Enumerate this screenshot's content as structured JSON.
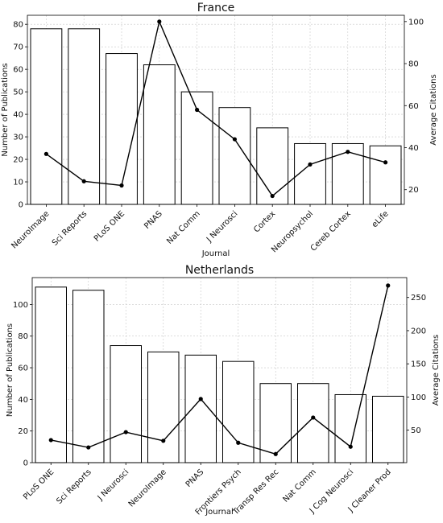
{
  "chart_data": [
    {
      "type": "bar",
      "title": "France",
      "xlabel": "Journal",
      "ylabel": "Number of Publications",
      "y2label": "Average Citations",
      "categories": [
        "NeuroImage",
        "Sci Reports",
        "PLoS ONE",
        "PNAS",
        "Nat Comm",
        "J Neurosci",
        "Cortex",
        "Neuropsychol",
        "Cereb Cortex",
        "eLife"
      ],
      "series": [
        {
          "name": "Number of Publications",
          "type": "bar",
          "axis": "left",
          "values": [
            78,
            78,
            67,
            62,
            50,
            43,
            34,
            27,
            27,
            26
          ]
        },
        {
          "name": "Average Citations",
          "type": "line",
          "axis": "right",
          "values": [
            37,
            24,
            22,
            100,
            58,
            44,
            17,
            32,
            38,
            33
          ]
        }
      ],
      "ylim": [
        0,
        84
      ],
      "yticks": [
        0,
        10,
        20,
        30,
        40,
        50,
        60,
        70,
        80
      ],
      "y2lim": [
        13,
        103
      ],
      "y2ticks": [
        20,
        40,
        60,
        80,
        100
      ],
      "grid": true
    },
    {
      "type": "bar",
      "title": "Netherlands",
      "xlabel": "Journal",
      "ylabel": "Number of Publications",
      "y2label": "Average Citations",
      "categories": [
        "PLoS ONE",
        "Sci Reports",
        "J Neurosci",
        "NeuroImage",
        "PNAS",
        "Frontiers Psych",
        "Transp Res Rec",
        "Nat Comm",
        "J Cog Neurosci",
        "J Cleaner Prod"
      ],
      "series": [
        {
          "name": "Number of Publications",
          "type": "bar",
          "axis": "left",
          "values": [
            111,
            109,
            74,
            70,
            68,
            64,
            50,
            50,
            43,
            42
          ]
        },
        {
          "name": "Average Citations",
          "type": "line",
          "axis": "right",
          "values": [
            35,
            24,
            47,
            34,
            97,
            31,
            14,
            69,
            25,
            268
          ]
        }
      ],
      "ylim": [
        0,
        117
      ],
      "yticks": [
        0,
        20,
        40,
        60,
        80,
        100
      ],
      "y2lim": [
        1,
        280
      ],
      "y2ticks": [
        50,
        100,
        150,
        200,
        250
      ],
      "grid": true
    }
  ]
}
